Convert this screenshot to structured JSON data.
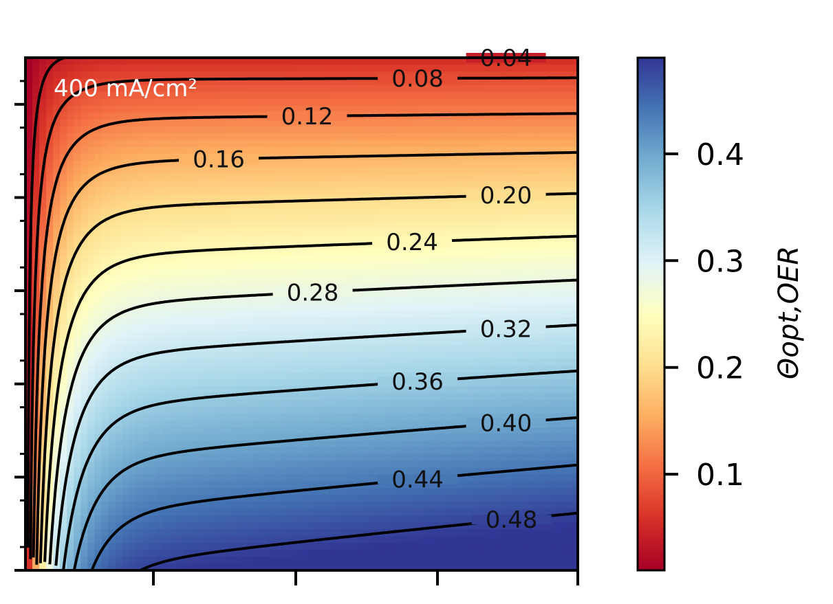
{
  "chart_data": {
    "type": "heatmap",
    "annotation": "400 mA/cm²",
    "colormap": "RdYlBu",
    "colorbar": {
      "label": "Θopt,OER",
      "range": [
        0.01,
        0.49
      ],
      "ticks": [
        0.1,
        0.2,
        0.3,
        0.4
      ],
      "tick_labels": [
        "0.1",
        "0.2",
        "0.3",
        "0.4"
      ]
    },
    "contours": [
      {
        "level": 0.04,
        "label": "0.04"
      },
      {
        "level": 0.08,
        "label": "0.08"
      },
      {
        "level": 0.12,
        "label": "0.12"
      },
      {
        "level": 0.16,
        "label": "0.16"
      },
      {
        "level": 0.2,
        "label": "0.20"
      },
      {
        "level": 0.24,
        "label": "0.24"
      },
      {
        "level": 0.28,
        "label": "0.28"
      },
      {
        "level": 0.32,
        "label": "0.32"
      },
      {
        "level": 0.36,
        "label": "0.36"
      },
      {
        "level": 0.4,
        "label": "0.40"
      },
      {
        "level": 0.44,
        "label": "0.44"
      },
      {
        "level": 0.48,
        "label": "0.48"
      }
    ],
    "x_tick_labels": [],
    "y_tick_labels": [],
    "grid": false,
    "legend": "none"
  }
}
